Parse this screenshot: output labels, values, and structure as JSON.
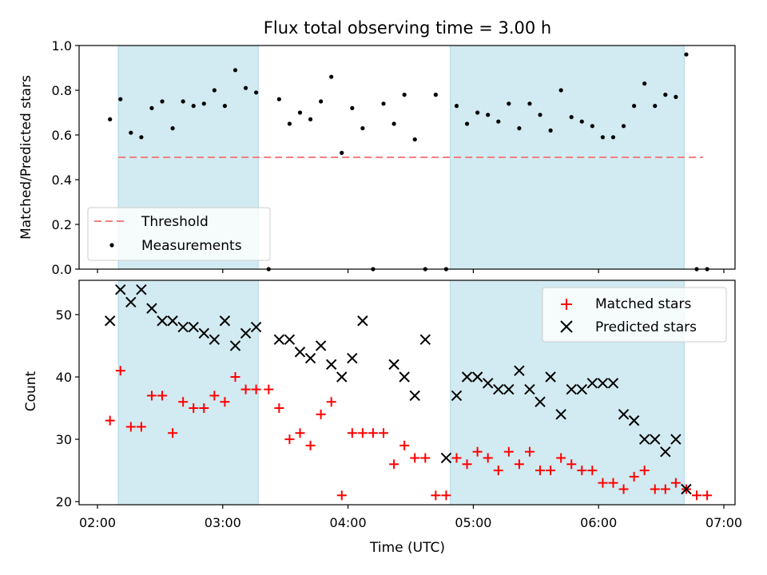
{
  "title": "Flux total observing time = 3.00 h",
  "colors": {
    "shade": "#add8e6",
    "threshold": "#f08080",
    "measurement": "#000000",
    "matched": "#ff0000",
    "predicted": "#000000"
  },
  "chart_data": [
    {
      "type": "scatter",
      "panel": "top",
      "title": "Flux total observing time = 3.00 h",
      "xlabel": "",
      "ylabel": "Matched/Predicted stars",
      "xlim": [
        "02:00",
        "07:00"
      ],
      "ylim": [
        0,
        1.0
      ],
      "yticks": [
        "0.0",
        "0.2",
        "0.4",
        "0.6",
        "0.8",
        "1.0"
      ],
      "legend": "lower-left",
      "shaded_intervals": [
        [
          "02:10",
          "03:17"
        ],
        [
          "04:49",
          "06:41"
        ]
      ],
      "threshold": {
        "name": "Threshold",
        "value": 0.5,
        "x": [
          "02:10",
          "06:50"
        ]
      },
      "series": [
        {
          "name": "Measurements",
          "x": [
            "02:06",
            "02:11",
            "02:16",
            "02:21",
            "02:26",
            "02:31",
            "02:36",
            "02:41",
            "02:46",
            "02:51",
            "02:56",
            "03:01",
            "03:06",
            "03:11",
            "03:16",
            "03:22",
            "03:27",
            "03:32",
            "03:37",
            "03:42",
            "03:47",
            "03:52",
            "03:57",
            "04:02",
            "04:07",
            "04:12",
            "04:17",
            "04:22",
            "04:27",
            "04:32",
            "04:37",
            "04:42",
            "04:47",
            "04:52",
            "04:57",
            "05:02",
            "05:07",
            "05:12",
            "05:17",
            "05:22",
            "05:27",
            "05:32",
            "05:37",
            "05:42",
            "05:47",
            "05:52",
            "05:57",
            "06:02",
            "06:07",
            "06:12",
            "06:17",
            "06:22",
            "06:27",
            "06:32",
            "06:37",
            "06:42",
            "06:47",
            "06:52"
          ],
          "values": [
            0.67,
            0.76,
            0.61,
            0.59,
            0.72,
            0.75,
            0.63,
            0.75,
            0.73,
            0.74,
            0.8,
            0.73,
            0.89,
            0.81,
            0.79,
            0.0,
            0.76,
            0.65,
            0.7,
            0.67,
            0.75,
            0.86,
            0.52,
            0.72,
            0.63,
            0.0,
            0.74,
            0.65,
            0.78,
            0.58,
            0.0,
            0.78,
            0.0,
            0.73,
            0.65,
            0.7,
            0.69,
            0.66,
            0.74,
            0.63,
            0.74,
            0.69,
            0.62,
            0.8,
            0.68,
            0.66,
            0.64,
            0.59,
            0.59,
            0.64,
            0.73,
            0.83,
            0.73,
            0.78,
            0.77,
            0.96,
            0.0,
            0.0
          ]
        }
      ]
    },
    {
      "type": "scatter",
      "panel": "bottom",
      "xlabel": "Time (UTC)",
      "ylabel": "Count",
      "xlim": [
        "02:00",
        "07:00"
      ],
      "xticks": [
        "02:00",
        "03:00",
        "04:00",
        "05:00",
        "06:00",
        "07:00"
      ],
      "ylim": [
        19.5,
        55.5
      ],
      "yticks": [
        "20",
        "30",
        "40",
        "50"
      ],
      "legend": "upper-right",
      "shaded_intervals": [
        [
          "02:10",
          "03:17"
        ],
        [
          "04:49",
          "06:41"
        ]
      ],
      "series": [
        {
          "name": "Matched stars",
          "x": [
            "02:06",
            "02:11",
            "02:16",
            "02:21",
            "02:26",
            "02:31",
            "02:36",
            "02:41",
            "02:46",
            "02:51",
            "02:56",
            "03:01",
            "03:06",
            "03:11",
            "03:16",
            "03:22",
            "03:27",
            "03:32",
            "03:37",
            "03:42",
            "03:47",
            "03:52",
            "03:57",
            "04:02",
            "04:07",
            "04:12",
            "04:17",
            "04:22",
            "04:27",
            "04:32",
            "04:37",
            "04:42",
            "04:47",
            "04:52",
            "04:57",
            "05:02",
            "05:07",
            "05:12",
            "05:17",
            "05:22",
            "05:27",
            "05:32",
            "05:37",
            "05:42",
            "05:47",
            "05:52",
            "05:57",
            "06:02",
            "06:07",
            "06:12",
            "06:17",
            "06:22",
            "06:27",
            "06:32",
            "06:37",
            "06:42",
            "06:47",
            "06:52"
          ],
          "values": [
            33,
            41,
            32,
            32,
            37,
            37,
            31,
            36,
            35,
            35,
            37,
            36,
            40,
            38,
            38,
            38,
            35,
            30,
            31,
            29,
            34,
            36,
            21,
            31,
            31,
            31,
            31,
            26,
            29,
            27,
            27,
            21,
            21,
            27,
            26,
            28,
            27,
            25,
            28,
            26,
            28,
            25,
            25,
            27,
            26,
            25,
            25,
            23,
            23,
            22,
            24,
            25,
            22,
            22,
            23,
            22,
            21,
            21
          ]
        },
        {
          "name": "Predicted stars",
          "x": [
            "02:06",
            "02:11",
            "02:16",
            "02:21",
            "02:26",
            "02:31",
            "02:36",
            "02:41",
            "02:46",
            "02:51",
            "02:56",
            "03:01",
            "03:06",
            "03:11",
            "03:16",
            "03:27",
            "03:32",
            "03:37",
            "03:42",
            "03:47",
            "03:52",
            "03:57",
            "04:02",
            "04:07",
            "04:22",
            "04:27",
            "04:32",
            "04:37",
            "04:47",
            "04:52",
            "04:57",
            "05:02",
            "05:07",
            "05:12",
            "05:17",
            "05:22",
            "05:27",
            "05:32",
            "05:37",
            "05:42",
            "05:47",
            "05:52",
            "05:57",
            "06:02",
            "06:07",
            "06:12",
            "06:17",
            "06:22",
            "06:27",
            "06:32",
            "06:37",
            "06:42"
          ],
          "values": [
            49,
            54,
            52,
            54,
            51,
            49,
            49,
            48,
            48,
            47,
            46,
            49,
            45,
            47,
            48,
            46,
            46,
            44,
            43,
            45,
            42,
            40,
            43,
            49,
            42,
            40,
            37,
            46,
            27,
            37,
            40,
            40,
            39,
            38,
            38,
            41,
            38,
            36,
            40,
            34,
            38,
            38,
            39,
            39,
            39,
            34,
            33,
            30,
            30,
            28,
            30,
            22
          ]
        }
      ]
    }
  ]
}
